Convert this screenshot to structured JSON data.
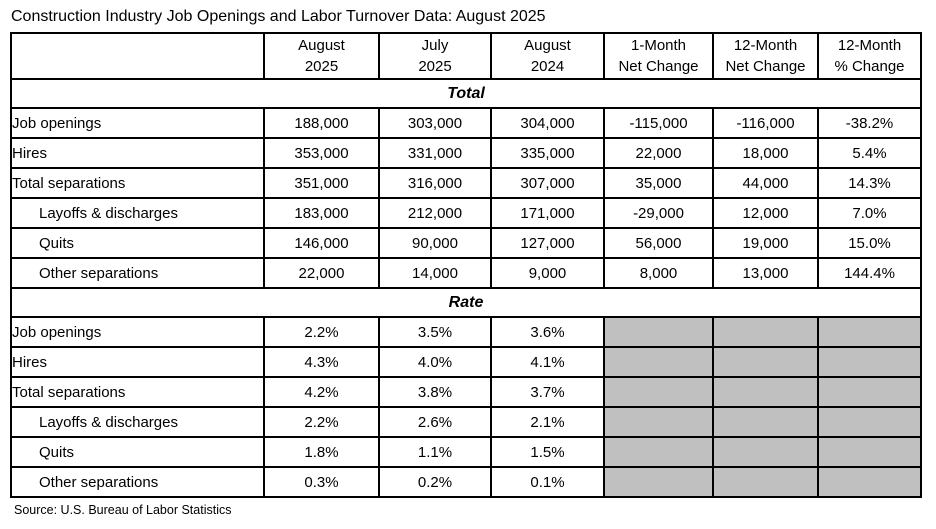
{
  "title": "Construction Industry Job Openings and Labor Turnover Data: August 2025",
  "source": "Source: U.S. Bureau of Labor Statistics",
  "colors": {
    "shaded_cell": "#c0c0c0",
    "border": "#000000",
    "background": "#ffffff"
  },
  "table": {
    "column_headers": [
      "",
      "August\n2025",
      "July\n2025",
      "August\n2024",
      "1-Month\nNet Change",
      "12-Month\nNet Change",
      "12-Month\n% Change"
    ],
    "sections": [
      {
        "name": "Total",
        "rows": [
          {
            "label": "Job openings",
            "indent": false,
            "values": [
              "188,000",
              "303,000",
              "304,000",
              "-115,000",
              "-116,000",
              "-38.2%"
            ]
          },
          {
            "label": "Hires",
            "indent": false,
            "values": [
              "353,000",
              "331,000",
              "335,000",
              "22,000",
              "18,000",
              "5.4%"
            ]
          },
          {
            "label": "Total separations",
            "indent": false,
            "values": [
              "351,000",
              "316,000",
              "307,000",
              "35,000",
              "44,000",
              "14.3%"
            ]
          },
          {
            "label": "Layoffs & discharges",
            "indent": true,
            "values": [
              "183,000",
              "212,000",
              "171,000",
              "-29,000",
              "12,000",
              "7.0%"
            ]
          },
          {
            "label": "Quits",
            "indent": true,
            "values": [
              "146,000",
              "90,000",
              "127,000",
              "56,000",
              "19,000",
              "15.0%"
            ]
          },
          {
            "label": "Other separations",
            "indent": true,
            "values": [
              "22,000",
              "14,000",
              "9,000",
              "8,000",
              "13,000",
              "144.4%"
            ]
          }
        ]
      },
      {
        "name": "Rate",
        "rows": [
          {
            "label": "Job openings",
            "indent": false,
            "values": [
              "2.2%",
              "3.5%",
              "3.6%",
              "",
              "",
              ""
            ]
          },
          {
            "label": "Hires",
            "indent": false,
            "values": [
              "4.3%",
              "4.0%",
              "4.1%",
              "",
              "",
              ""
            ]
          },
          {
            "label": "Total separations",
            "indent": false,
            "values": [
              "4.2%",
              "3.8%",
              "3.7%",
              "",
              "",
              ""
            ]
          },
          {
            "label": "Layoffs & discharges",
            "indent": true,
            "values": [
              "2.2%",
              "2.6%",
              "2.1%",
              "",
              "",
              ""
            ]
          },
          {
            "label": "Quits",
            "indent": true,
            "values": [
              "1.8%",
              "1.1%",
              "1.5%",
              "",
              "",
              ""
            ]
          },
          {
            "label": "Other separations",
            "indent": true,
            "values": [
              "0.3%",
              "0.2%",
              "0.1%",
              "",
              "",
              ""
            ]
          }
        ]
      }
    ]
  }
}
